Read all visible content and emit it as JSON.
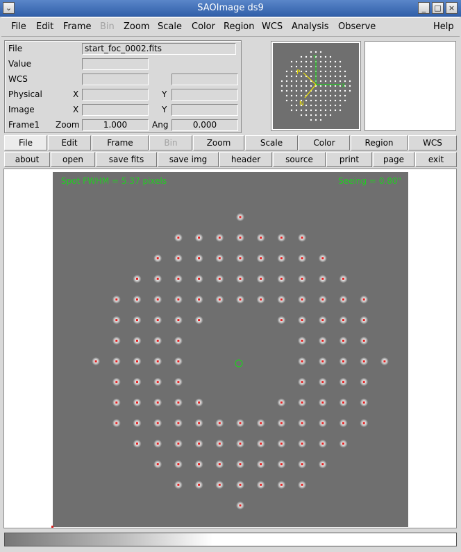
{
  "window": {
    "title": "SAOImage ds9",
    "buttons": [
      "_",
      "□",
      "×"
    ],
    "menu_icon": "⌄"
  },
  "menubar": {
    "items": [
      {
        "label": "File",
        "enabled": true
      },
      {
        "label": "Edit",
        "enabled": true
      },
      {
        "label": "Frame",
        "enabled": true
      },
      {
        "label": "Bin",
        "enabled": false
      },
      {
        "label": "Zoom",
        "enabled": true
      },
      {
        "label": "Scale",
        "enabled": true
      },
      {
        "label": "Color",
        "enabled": true
      },
      {
        "label": "Region",
        "enabled": true
      },
      {
        "label": "WCS",
        "enabled": true
      },
      {
        "label": "Analysis",
        "enabled": true
      },
      {
        "label": "Observe",
        "enabled": true
      },
      {
        "label": "Help",
        "enabled": true
      }
    ]
  },
  "info": {
    "file_label": "File",
    "file_value": "start_foc_0002.fits",
    "value_label": "Value",
    "value_value": "",
    "wcs_label": "WCS",
    "wcs_value": "",
    "wcs_value2": "",
    "physical_label": "Physical",
    "physical_x_label": "X",
    "physical_x": "",
    "physical_y_label": "Y",
    "physical_y": "",
    "image_label": "Image",
    "image_x_label": "X",
    "image_x": "",
    "image_y_label": "Y",
    "image_y": "",
    "frame_label": "Frame1",
    "zoom_label": "Zoom",
    "zoom_value": "1.000",
    "angle_label": "Ang",
    "angle_value": "0.000"
  },
  "panner": {
    "labels": {
      "y": "Y",
      "x": "X",
      "p": "P",
      "n": "N"
    }
  },
  "button_bar_major": [
    {
      "label": "File",
      "active": true,
      "enabled": true
    },
    {
      "label": "Edit",
      "active": false,
      "enabled": true
    },
    {
      "label": "Frame",
      "active": false,
      "enabled": true
    },
    {
      "label": "Bin",
      "active": false,
      "enabled": false
    },
    {
      "label": "Zoom",
      "active": false,
      "enabled": true
    },
    {
      "label": "Scale",
      "active": false,
      "enabled": true
    },
    {
      "label": "Color",
      "active": false,
      "enabled": true
    },
    {
      "label": "Region",
      "active": false,
      "enabled": true
    },
    {
      "label": "WCS",
      "active": false,
      "enabled": true
    }
  ],
  "button_bar_minor": [
    {
      "label": "about"
    },
    {
      "label": "open"
    },
    {
      "label": "save fits"
    },
    {
      "label": "save img"
    },
    {
      "label": "header"
    },
    {
      "label": "source"
    },
    {
      "label": "print"
    },
    {
      "label": "page"
    },
    {
      "label": "exit"
    }
  ],
  "image": {
    "annotation_left": "Spot FWHM = 5.37 pixels",
    "annotation_right": "Seeing =  0.80\"",
    "annotation_color": "#22cc22",
    "marker_color": "#e02020",
    "background_color": "#6f6f6f"
  }
}
